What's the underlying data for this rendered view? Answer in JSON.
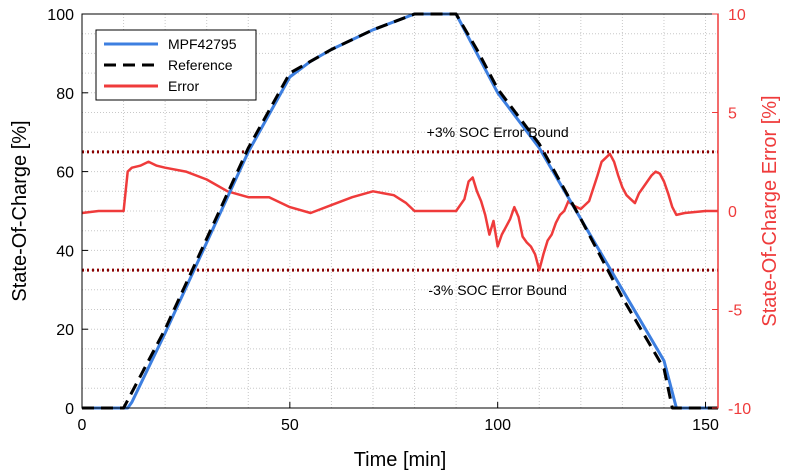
{
  "chart_data": {
    "type": "line",
    "xlabel": "Time [min]",
    "ylabel_left": "State-Of-Charge [%]",
    "ylabel_right": "State-Of-Charge Error [%]",
    "xlim": [
      0,
      153
    ],
    "ylim_left": [
      0,
      100
    ],
    "ylim_right": [
      -10,
      10
    ],
    "x_ticks": [
      0,
      50,
      100,
      150
    ],
    "y_left_ticks": [
      0,
      20,
      40,
      60,
      80,
      100
    ],
    "y_right_ticks": [
      -10,
      -5,
      0,
      5,
      10
    ],
    "grid": "dotted",
    "legend_position": "top-left",
    "colors": {
      "soc": "#3d7fe0",
      "reference": "#000000",
      "error": "#ef3b3b",
      "bound": "#8b0000",
      "right_axis": "#ef3b3b"
    },
    "annotations": [
      {
        "text": "+3% SOC Error Bound",
        "x": 100,
        "y_left": 70
      },
      {
        "text": "-3% SOC Error Bound",
        "x": 100,
        "y_left": 30
      }
    ],
    "bounds_right_axis": [
      3,
      -3
    ],
    "series": [
      {
        "name": "MPF42795",
        "axis": "left",
        "style": "solid",
        "x": [
          0,
          11,
          12,
          20,
          30,
          40,
          50,
          55,
          60,
          70,
          80,
          90,
          95,
          100,
          110,
          120,
          130,
          140,
          143,
          153
        ],
        "y": [
          0,
          0,
          1.5,
          19,
          42,
          65,
          84,
          88,
          91,
          96,
          100,
          100,
          90,
          80,
          66,
          48,
          30,
          12,
          0,
          0
        ]
      },
      {
        "name": "Reference",
        "axis": "left",
        "style": "dashed",
        "x": [
          0,
          10,
          20,
          30,
          40,
          50,
          55,
          60,
          70,
          80,
          90,
          95,
          100,
          110,
          120,
          130,
          140,
          142,
          153
        ],
        "y": [
          0,
          0,
          20,
          43,
          66,
          85,
          88,
          91,
          96,
          100,
          100,
          91,
          81,
          67,
          48,
          28,
          10,
          0,
          0
        ]
      },
      {
        "name": "Error",
        "axis": "right",
        "style": "solid",
        "x": [
          0,
          4,
          8,
          10,
          11,
          12,
          14,
          16,
          18,
          20,
          25,
          30,
          35,
          40,
          45,
          50,
          55,
          60,
          65,
          70,
          75,
          78,
          80,
          84,
          88,
          90,
          92,
          93,
          94,
          95,
          96,
          97,
          98,
          99,
          100,
          101,
          102,
          103,
          104,
          105,
          106,
          107,
          108,
          109,
          110,
          111,
          112,
          113,
          114,
          115,
          116,
          117,
          118,
          120,
          122,
          124,
          125,
          126,
          127,
          128,
          129,
          130,
          131,
          132,
          133,
          134,
          135,
          136,
          137,
          138,
          139,
          140,
          141,
          142,
          143,
          145,
          150,
          153
        ],
        "y": [
          -0.1,
          0,
          0,
          0,
          2.0,
          2.2,
          2.3,
          2.5,
          2.3,
          2.2,
          2.0,
          1.6,
          1.0,
          0.7,
          0.7,
          0.2,
          -0.1,
          0.3,
          0.7,
          1.0,
          0.8,
          0.4,
          0,
          0,
          0,
          0,
          0.6,
          1.5,
          1.7,
          1.0,
          0.5,
          -0.2,
          -1.2,
          -0.5,
          -1.8,
          -1.2,
          -0.8,
          -0.4,
          0.2,
          -0.3,
          -1.3,
          -1.6,
          -1.8,
          -2.2,
          -3.0,
          -2.2,
          -1.5,
          -1.2,
          -0.6,
          -0.2,
          0,
          0.5,
          0.3,
          0.1,
          0.5,
          1.8,
          2.5,
          2.7,
          2.9,
          2.5,
          1.8,
          1.2,
          0.8,
          0.6,
          0.4,
          0.9,
          1.2,
          1.5,
          1.8,
          2.0,
          1.9,
          1.5,
          0.9,
          0.2,
          -0.2,
          -0.1,
          0,
          0
        ]
      }
    ]
  }
}
